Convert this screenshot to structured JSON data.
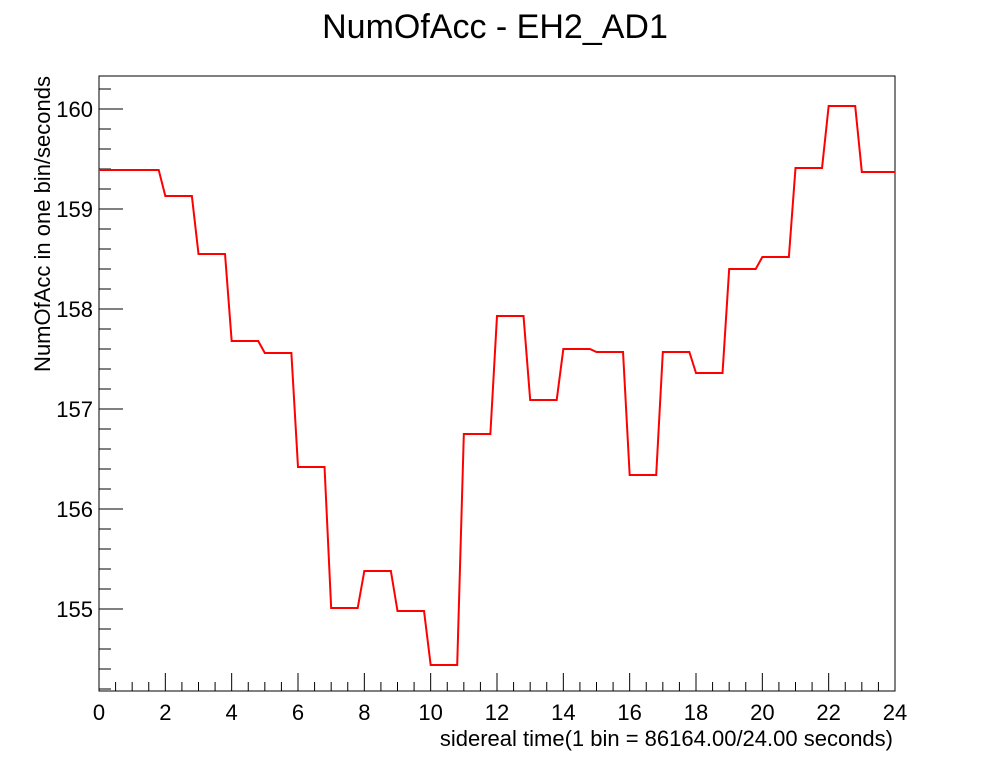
{
  "chart_data": {
    "type": "line",
    "title": "NumOfAcc - EH2_AD1",
    "xlabel": "sidereal time(1 bin = 86164.00/24.00 seconds)",
    "ylabel": "NumOfAcc in one bin/seconds",
    "xlim": [
      0,
      24
    ],
    "ylim": [
      154.18,
      160.33
    ],
    "x_ticks": [
      "0",
      "2",
      "4",
      "6",
      "8",
      "10",
      "12",
      "14",
      "16",
      "18",
      "20",
      "22",
      "24"
    ],
    "y_ticks": [
      "155",
      "156",
      "157",
      "158",
      "159",
      "160"
    ],
    "grid": false,
    "legend": "none",
    "series": [
      {
        "color": "#ff0000",
        "x": [
          0,
          0.5,
          1,
          1.5,
          1.8,
          2,
          2.5,
          2.8,
          3,
          3.5,
          3.8,
          4,
          4.5,
          4.8,
          5,
          5.5,
          5.8,
          6,
          6.5,
          6.8,
          7,
          7.5,
          7.8,
          8,
          8.5,
          8.8,
          9,
          9.5,
          9.8,
          10,
          10.5,
          10.8,
          11,
          11.5,
          11.8,
          12,
          12.5,
          12.8,
          13,
          13.5,
          13.8,
          14,
          14.5,
          14.8,
          15,
          15.5,
          15.8,
          16,
          16.5,
          16.8,
          17,
          17.5,
          17.8,
          18,
          18.5,
          18.8,
          19,
          19.5,
          19.8,
          20,
          20.5,
          20.8,
          21,
          21.5,
          21.8,
          22,
          22.5,
          22.8,
          23,
          23.5,
          24
        ],
        "y": [
          159.39,
          159.39,
          159.39,
          159.39,
          159.39,
          159.13,
          159.13,
          159.13,
          158.55,
          158.55,
          158.55,
          157.68,
          157.68,
          157.68,
          157.56,
          157.56,
          157.56,
          156.42,
          156.42,
          156.42,
          155.01,
          155.01,
          155.01,
          155.38,
          155.38,
          155.38,
          154.98,
          154.98,
          154.98,
          154.44,
          154.44,
          154.44,
          156.75,
          156.75,
          156.75,
          157.93,
          157.93,
          157.93,
          157.09,
          157.09,
          157.09,
          157.6,
          157.6,
          157.6,
          157.57,
          157.57,
          157.57,
          156.34,
          156.34,
          156.34,
          157.57,
          157.57,
          157.57,
          157.36,
          157.36,
          157.36,
          158.4,
          158.4,
          158.4,
          158.52,
          158.52,
          158.52,
          159.41,
          159.41,
          159.41,
          160.03,
          160.03,
          160.03,
          159.37,
          159.37,
          159.37
        ]
      }
    ]
  }
}
